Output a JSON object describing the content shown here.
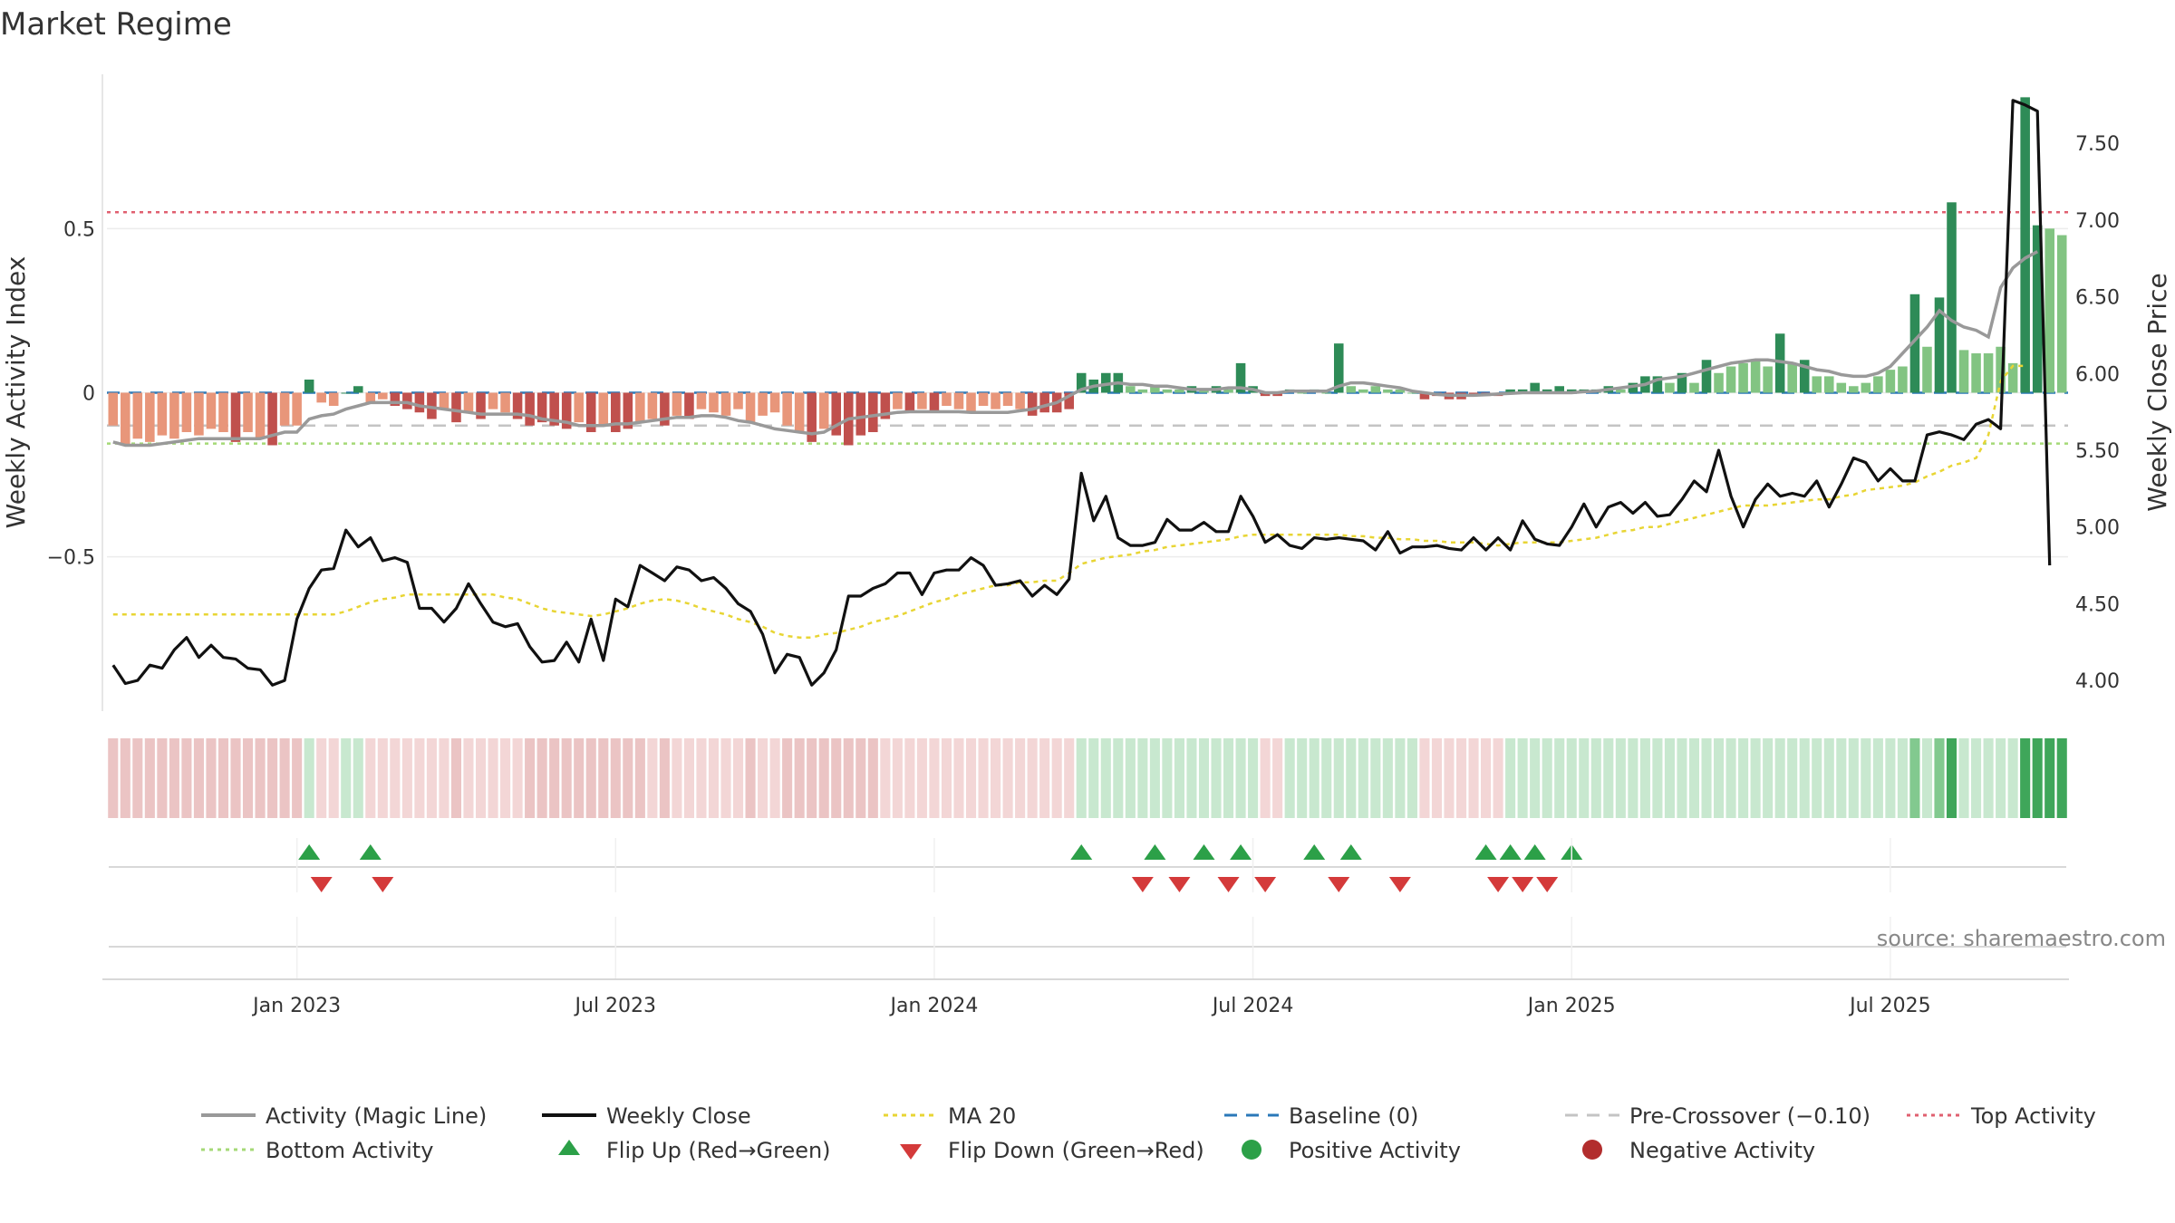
{
  "title": "Market Regime",
  "source": "source: sharemaestro.com",
  "colors": {
    "activity": "#999999",
    "close": "#111111",
    "ma": "#e8d534",
    "baseline": "#2a78b8",
    "pre": "#c4c4c4",
    "top": "#e06070",
    "bottom": "#a5d977",
    "posDark": "#2e8b57",
    "posLight": "#82c482",
    "negDark": "#c0504d",
    "negLight": "#e8967a",
    "flipUp": "#2ca048",
    "flipDown": "#d43a3a"
  },
  "chart_data": {
    "type": "combo",
    "title": "Market Regime",
    "ylabel_left": "Weekly Activity Index",
    "ylabel_right": "Weekly Close Price",
    "left_ticks": [
      {
        "v": 0.5,
        "label": "0.5"
      },
      {
        "v": 0,
        "label": "0"
      },
      {
        "v": -0.5,
        "label": "−0.5"
      }
    ],
    "right_ticks": [
      {
        "v": 7.5,
        "label": "7.50"
      },
      {
        "v": 7.0,
        "label": "7.00"
      },
      {
        "v": 6.5,
        "label": "6.50"
      },
      {
        "v": 6.0,
        "label": "6.00"
      },
      {
        "v": 5.5,
        "label": "5.50"
      },
      {
        "v": 5.0,
        "label": "5.00"
      },
      {
        "v": 4.5,
        "label": "4.50"
      },
      {
        "v": 4.0,
        "label": "4.00"
      }
    ],
    "x_ticks": [
      {
        "w": 15,
        "label": "Jan 2023"
      },
      {
        "w": 41,
        "label": "Jul 2023"
      },
      {
        "w": 67,
        "label": "Jan 2024"
      },
      {
        "w": 93,
        "label": "Jul 2024"
      },
      {
        "w": 119,
        "label": "Jan 2025"
      },
      {
        "w": 145,
        "label": "Jul 2025"
      }
    ],
    "ylim_left": [
      -0.97,
      0.97
    ],
    "ylim_right": [
      3.8,
      7.95
    ],
    "levels": {
      "baseline": 0,
      "pre_crossover": -0.1,
      "top_activity": 0.55,
      "bottom_activity": -0.155
    },
    "activity": [
      -0.1,
      -0.16,
      -0.14,
      -0.15,
      -0.13,
      -0.14,
      -0.12,
      -0.13,
      -0.11,
      -0.12,
      -0.15,
      -0.12,
      -0.14,
      -0.16,
      -0.1,
      -0.1,
      0.04,
      -0.03,
      -0.04,
      0.0,
      0.02,
      -0.03,
      -0.02,
      -0.04,
      -0.05,
      -0.06,
      -0.08,
      -0.05,
      -0.09,
      -0.06,
      -0.08,
      -0.05,
      -0.06,
      -0.08,
      -0.1,
      -0.09,
      -0.1,
      -0.11,
      -0.09,
      -0.12,
      -0.1,
      -0.12,
      -0.11,
      -0.09,
      -0.08,
      -0.1,
      -0.07,
      -0.08,
      -0.05,
      -0.06,
      -0.07,
      -0.05,
      -0.09,
      -0.07,
      -0.06,
      -0.1,
      -0.12,
      -0.15,
      -0.11,
      -0.13,
      -0.16,
      -0.13,
      -0.12,
      -0.08,
      -0.05,
      -0.06,
      -0.05,
      -0.06,
      -0.04,
      -0.05,
      -0.06,
      -0.04,
      -0.05,
      -0.04,
      -0.05,
      -0.07,
      -0.06,
      -0.06,
      -0.05,
      0.06,
      0.04,
      0.06,
      0.06,
      0.02,
      0.01,
      0.02,
      0.01,
      0.01,
      0.02,
      0.01,
      0.02,
      0.01,
      0.09,
      0.02,
      -0.01,
      -0.01,
      0.01,
      0.0,
      0.01,
      0.0,
      0.15,
      0.02,
      0.01,
      0.02,
      0.01,
      0.01,
      0.0,
      -0.02,
      -0.01,
      -0.02,
      -0.02,
      -0.01,
      -0.01,
      -0.01,
      0.01,
      0.01,
      0.03,
      0.01,
      0.02,
      0.01,
      0.01,
      0.01,
      0.02,
      0.01,
      0.03,
      0.05,
      0.05,
      0.03,
      0.06,
      0.03,
      0.1,
      0.06,
      0.08,
      0.09,
      0.1,
      0.08,
      0.18,
      0.09,
      0.1,
      0.05,
      0.05,
      0.03,
      0.02,
      0.03,
      0.05,
      0.07,
      0.08,
      0.3,
      0.14,
      0.29,
      0.58,
      0.13,
      0.12,
      0.12,
      0.14,
      0.09,
      0.9,
      0.51,
      0.5,
      0.48
    ],
    "magic_line": [
      -0.15,
      -0.16,
      -0.16,
      -0.16,
      -0.155,
      -0.15,
      -0.145,
      -0.14,
      -0.14,
      -0.14,
      -0.14,
      -0.14,
      -0.14,
      -0.13,
      -0.12,
      -0.12,
      -0.08,
      -0.07,
      -0.065,
      -0.05,
      -0.04,
      -0.03,
      -0.03,
      -0.03,
      -0.03,
      -0.04,
      -0.045,
      -0.05,
      -0.055,
      -0.06,
      -0.065,
      -0.065,
      -0.065,
      -0.065,
      -0.07,
      -0.08,
      -0.085,
      -0.09,
      -0.1,
      -0.1,
      -0.1,
      -0.095,
      -0.095,
      -0.09,
      -0.085,
      -0.08,
      -0.075,
      -0.075,
      -0.07,
      -0.07,
      -0.075,
      -0.085,
      -0.09,
      -0.1,
      -0.11,
      -0.115,
      -0.12,
      -0.125,
      -0.12,
      -0.1,
      -0.08,
      -0.075,
      -0.07,
      -0.065,
      -0.06,
      -0.058,
      -0.058,
      -0.058,
      -0.058,
      -0.058,
      -0.06,
      -0.06,
      -0.06,
      -0.06,
      -0.055,
      -0.05,
      -0.04,
      -0.03,
      -0.01,
      0.01,
      0.02,
      0.025,
      0.03,
      0.025,
      0.025,
      0.02,
      0.02,
      0.015,
      0.01,
      0.01,
      0.01,
      0.015,
      0.015,
      0.01,
      0.0,
      0.0,
      0.005,
      0.005,
      0.005,
      0.005,
      0.02,
      0.03,
      0.03,
      0.025,
      0.02,
      0.015,
      0.005,
      0.0,
      -0.005,
      -0.008,
      -0.008,
      -0.008,
      -0.006,
      -0.004,
      -0.002,
      0.0,
      0.0,
      0.0,
      0.0,
      0.0,
      0.003,
      0.005,
      0.01,
      0.015,
      0.02,
      0.025,
      0.04,
      0.045,
      0.05,
      0.06,
      0.07,
      0.08,
      0.09,
      0.095,
      0.1,
      0.1,
      0.095,
      0.09,
      0.08,
      0.07,
      0.065,
      0.055,
      0.05,
      0.05,
      0.06,
      0.08,
      0.12,
      0.16,
      0.2,
      0.25,
      0.22,
      0.2,
      0.19,
      0.17,
      0.32,
      0.38,
      0.41,
      0.43
    ],
    "weekly_close": [
      4.1,
      3.98,
      4.0,
      4.1,
      4.08,
      4.2,
      4.28,
      4.15,
      4.23,
      4.15,
      4.14,
      4.08,
      4.07,
      3.97,
      4.0,
      4.4,
      4.6,
      4.72,
      4.73,
      4.98,
      4.87,
      4.93,
      4.78,
      4.8,
      4.77,
      4.47,
      4.47,
      4.38,
      4.47,
      4.63,
      4.5,
      4.38,
      4.35,
      4.37,
      4.22,
      4.12,
      4.13,
      4.25,
      4.12,
      4.4,
      4.13,
      4.53,
      4.48,
      4.75,
      4.7,
      4.65,
      4.74,
      4.72,
      4.65,
      4.67,
      4.6,
      4.5,
      4.45,
      4.3,
      4.05,
      4.17,
      4.15,
      3.97,
      4.05,
      4.2,
      4.55,
      4.55,
      4.6,
      4.63,
      4.7,
      4.7,
      4.56,
      4.7,
      4.72,
      4.72,
      4.8,
      4.75,
      4.62,
      4.63,
      4.65,
      4.55,
      4.62,
      4.56,
      4.66,
      5.35,
      5.04,
      5.2,
      4.93,
      4.88,
      4.88,
      4.9,
      5.05,
      4.98,
      4.98,
      5.03,
      4.97,
      4.97,
      5.2,
      5.07,
      4.9,
      4.95,
      4.88,
      4.86,
      4.93,
      4.92,
      4.93,
      4.92,
      4.91,
      4.85,
      4.97,
      4.83,
      4.87,
      4.87,
      4.88,
      4.86,
      4.85,
      4.93,
      4.85,
      4.93,
      4.85,
      5.04,
      4.92,
      4.89,
      4.88,
      5.0,
      5.15,
      5.0,
      5.13,
      5.16,
      5.09,
      5.16,
      5.07,
      5.08,
      5.18,
      5.3,
      5.23,
      5.5,
      5.2,
      5.0,
      5.18,
      5.28,
      5.2,
      5.22,
      5.2,
      5.3,
      5.13,
      5.28,
      5.45,
      5.42,
      5.3,
      5.38,
      5.3,
      5.3,
      5.6,
      5.62,
      5.6,
      5.57,
      5.67,
      5.7,
      5.64,
      7.78,
      7.75,
      7.71,
      4.75
    ],
    "ma20": [
      4.43,
      4.43,
      4.43,
      4.43,
      4.43,
      4.43,
      4.43,
      4.43,
      4.43,
      4.43,
      4.43,
      4.43,
      4.43,
      4.43,
      4.43,
      4.43,
      4.43,
      4.43,
      4.43,
      4.45,
      4.48,
      4.51,
      4.53,
      4.54,
      4.56,
      4.56,
      4.56,
      4.56,
      4.56,
      4.56,
      4.56,
      4.56,
      4.54,
      4.53,
      4.5,
      4.47,
      4.45,
      4.44,
      4.43,
      4.42,
      4.43,
      4.45,
      4.47,
      4.5,
      4.52,
      4.53,
      4.52,
      4.5,
      4.47,
      4.45,
      4.43,
      4.4,
      4.38,
      4.35,
      4.31,
      4.29,
      4.28,
      4.28,
      4.3,
      4.31,
      4.33,
      4.35,
      4.38,
      4.4,
      4.42,
      4.45,
      4.48,
      4.51,
      4.53,
      4.56,
      4.58,
      4.6,
      4.62,
      4.62,
      4.64,
      4.64,
      4.65,
      4.65,
      4.7,
      4.76,
      4.78,
      4.8,
      4.81,
      4.82,
      4.84,
      4.85,
      4.87,
      4.88,
      4.89,
      4.9,
      4.91,
      4.92,
      4.94,
      4.95,
      4.95,
      4.95,
      4.95,
      4.95,
      4.95,
      4.95,
      4.95,
      4.94,
      4.94,
      4.93,
      4.93,
      4.92,
      4.92,
      4.91,
      4.91,
      4.9,
      4.9,
      4.9,
      4.89,
      4.88,
      4.89,
      4.9,
      4.9,
      4.9,
      4.9,
      4.91,
      4.92,
      4.93,
      4.95,
      4.97,
      4.98,
      5.0,
      5.0,
      5.02,
      5.04,
      5.06,
      5.08,
      5.1,
      5.12,
      5.14,
      5.14,
      5.14,
      5.15,
      5.16,
      5.17,
      5.18,
      5.18,
      5.2,
      5.21,
      5.24,
      5.25,
      5.26,
      5.27,
      5.29,
      5.33,
      5.36,
      5.4,
      5.42,
      5.45,
      5.6,
      5.95,
      6.05,
      6.05
    ],
    "flip_up_weeks": [
      16,
      21,
      79,
      85,
      89,
      92,
      98,
      101,
      112,
      114,
      116,
      119
    ],
    "flip_down_weeks": [
      17,
      22,
      84,
      87,
      91,
      94,
      100,
      105,
      113,
      115,
      117
    ],
    "legend": [
      "Activity (Magic Line)",
      "Weekly Close",
      "MA 20",
      "Baseline (0)",
      "Pre-Crossover (−0.10)",
      "Top Activity",
      "Bottom Activity",
      "Flip Up (Red→Green)",
      "Flip Down (Green→Red)",
      "Positive Activity",
      "Negative Activity"
    ]
  }
}
